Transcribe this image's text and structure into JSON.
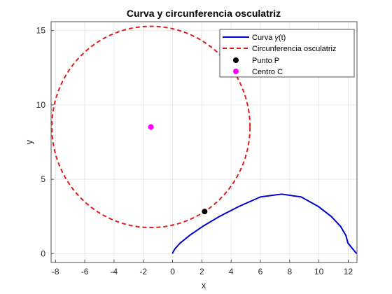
{
  "chart_data": {
    "type": "line",
    "title": "Curva y circunferencia osculatriz",
    "xlabel": "x",
    "ylabel": "y",
    "xlim": [
      -8.3,
      12.6
    ],
    "ylim": [
      -0.6,
      15.6
    ],
    "xticks": [
      -8,
      -6,
      -4,
      -2,
      0,
      2,
      4,
      6,
      8,
      10,
      12
    ],
    "yticks": [
      0,
      5,
      10,
      15
    ],
    "grid": true,
    "legend_position": "top-right",
    "series": [
      {
        "name": "Curva γ(t)",
        "kind": "curve",
        "color": "#0000cd",
        "style": "solid",
        "description_of_shape": "cycloid x = 2(t - sin t), y = 2(1 - cos t), t in [0, 2π]",
        "x": [
          0,
          0.02,
          0.16,
          0.52,
          1.16,
          2.06,
          3.21,
          4.55,
          6.0,
          7.45,
          8.79,
          9.94,
          10.84,
          11.48,
          11.84,
          11.98,
          12.57
        ],
        "y": [
          0,
          0.08,
          0.32,
          0.71,
          1.22,
          1.83,
          2.5,
          3.18,
          3.81,
          4.0,
          3.81,
          3.18,
          2.5,
          1.83,
          1.22,
          0.71,
          0
        ]
      },
      {
        "name": "Circunferencia osculatriz",
        "kind": "circle",
        "color": "#dd1c1c",
        "style": "dashed",
        "center": [
          -1.48,
          8.52
        ],
        "radius": 6.77
      },
      {
        "name": "Punto P",
        "kind": "point",
        "color": "#000000",
        "x": [
          2.19
        ],
        "y": [
          2.83
        ]
      },
      {
        "name": "Centro C",
        "kind": "point",
        "color": "#ff00ff",
        "x": [
          -1.48
        ],
        "y": [
          8.52
        ]
      }
    ]
  },
  "legend": {
    "curve_label": "Curva ",
    "curve_symbol": "γ",
    "curve_arg": "(t)",
    "circle_label": "Circunferencia osculatriz",
    "point_label": "Punto P",
    "center_label": "Centro C"
  }
}
